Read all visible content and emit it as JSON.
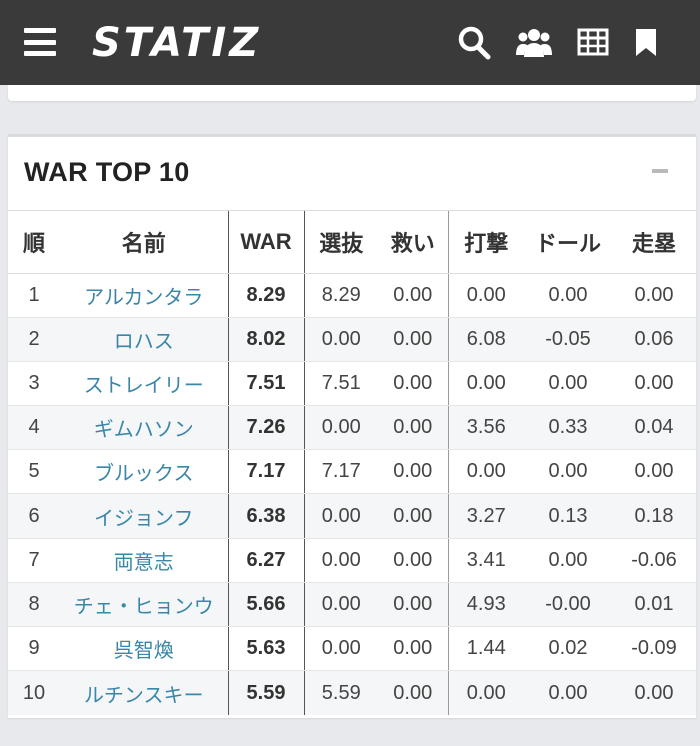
{
  "header": {
    "logo": "STATIZ",
    "icons": [
      "search-icon",
      "users-icon",
      "table-icon",
      "bookmark-icon"
    ],
    "background": "#3a3a3a"
  },
  "card": {
    "title": "WAR TOP 10",
    "collapse_symbol": "−"
  },
  "table": {
    "headers": [
      "順",
      "名前",
      "WAR",
      "選抜",
      "救い",
      "打撃",
      "ドール",
      "走塁"
    ],
    "rows": [
      {
        "rank": "1",
        "name": "アルカンタラ",
        "war": "8.29",
        "c1": "8.29",
        "c2": "0.00",
        "c3": "0.00",
        "c4": "0.00",
        "c5": "0.00"
      },
      {
        "rank": "2",
        "name": "ロハス",
        "war": "8.02",
        "c1": "0.00",
        "c2": "0.00",
        "c3": "6.08",
        "c4": "-0.05",
        "c5": "0.06"
      },
      {
        "rank": "3",
        "name": "ストレイリー",
        "war": "7.51",
        "c1": "7.51",
        "c2": "0.00",
        "c3": "0.00",
        "c4": "0.00",
        "c5": "0.00"
      },
      {
        "rank": "4",
        "name": "ギムハソン",
        "war": "7.26",
        "c1": "0.00",
        "c2": "0.00",
        "c3": "3.56",
        "c4": "0.33",
        "c5": "0.04"
      },
      {
        "rank": "5",
        "name": "ブルックス",
        "war": "7.17",
        "c1": "7.17",
        "c2": "0.00",
        "c3": "0.00",
        "c4": "0.00",
        "c5": "0.00"
      },
      {
        "rank": "6",
        "name": "イジョンフ",
        "war": "6.38",
        "c1": "0.00",
        "c2": "0.00",
        "c3": "3.27",
        "c4": "0.13",
        "c5": "0.18"
      },
      {
        "rank": "7",
        "name": "両意志",
        "war": "6.27",
        "c1": "0.00",
        "c2": "0.00",
        "c3": "3.41",
        "c4": "0.00",
        "c5": "-0.06"
      },
      {
        "rank": "8",
        "name": "チェ・ヒョンウ",
        "war": "5.66",
        "c1": "0.00",
        "c2": "0.00",
        "c3": "4.93",
        "c4": "-0.00",
        "c5": "0.01"
      },
      {
        "rank": "9",
        "name": "呉智煥",
        "war": "5.63",
        "c1": "0.00",
        "c2": "0.00",
        "c3": "1.44",
        "c4": "0.02",
        "c5": "-0.09"
      },
      {
        "rank": "10",
        "name": "ルチンスキー",
        "war": "5.59",
        "c1": "5.59",
        "c2": "0.00",
        "c3": "0.00",
        "c4": "0.00",
        "c5": "0.00"
      }
    ]
  },
  "colors": {
    "link": "#3a86a8",
    "page_bg": "#e8e9ec"
  }
}
